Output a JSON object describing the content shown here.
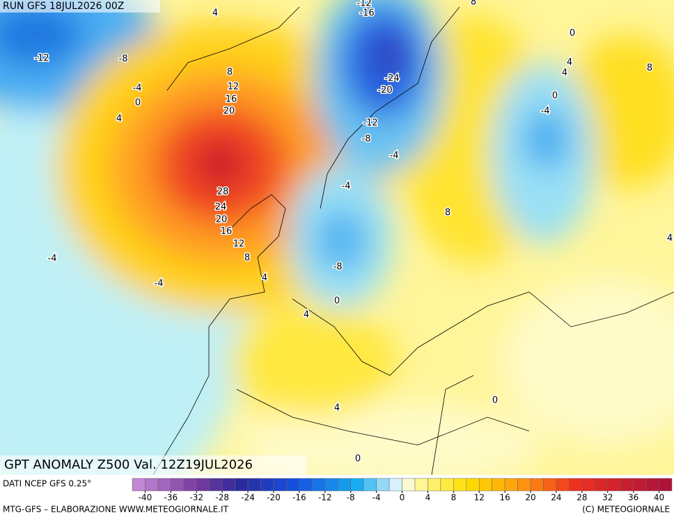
{
  "header": {
    "run": "RUN GFS 18JUL2026 00Z",
    "title": "GPT ANOMALY Z500 Val. 12Z19JUL2026",
    "source": "DATI NCEP GFS 0.25°",
    "credit_left": "MTG-GFS – ELABORAZIONE WWW.METEOGIORNALE.IT",
    "credit_right": "(C) METEOGIORNALE"
  },
  "legend": {
    "range": [
      -42,
      42
    ],
    "ticks": [
      -40,
      -36,
      -32,
      -28,
      -24,
      -20,
      -16,
      -12,
      -8,
      -4,
      0,
      4,
      8,
      12,
      16,
      20,
      24,
      28,
      32,
      36,
      40
    ]
  },
  "contour_labels": [
    4,
    -12,
    -16,
    8,
    0,
    -12,
    -8,
    4,
    4,
    8,
    8,
    -24,
    -4,
    12,
    -20,
    0,
    0,
    16,
    -4,
    20,
    4,
    -12,
    -8,
    -4,
    -4,
    28,
    24,
    8,
    20,
    16,
    4,
    12,
    -4,
    8,
    -8,
    4,
    -4,
    0,
    4,
    0,
    4,
    0
  ]
}
